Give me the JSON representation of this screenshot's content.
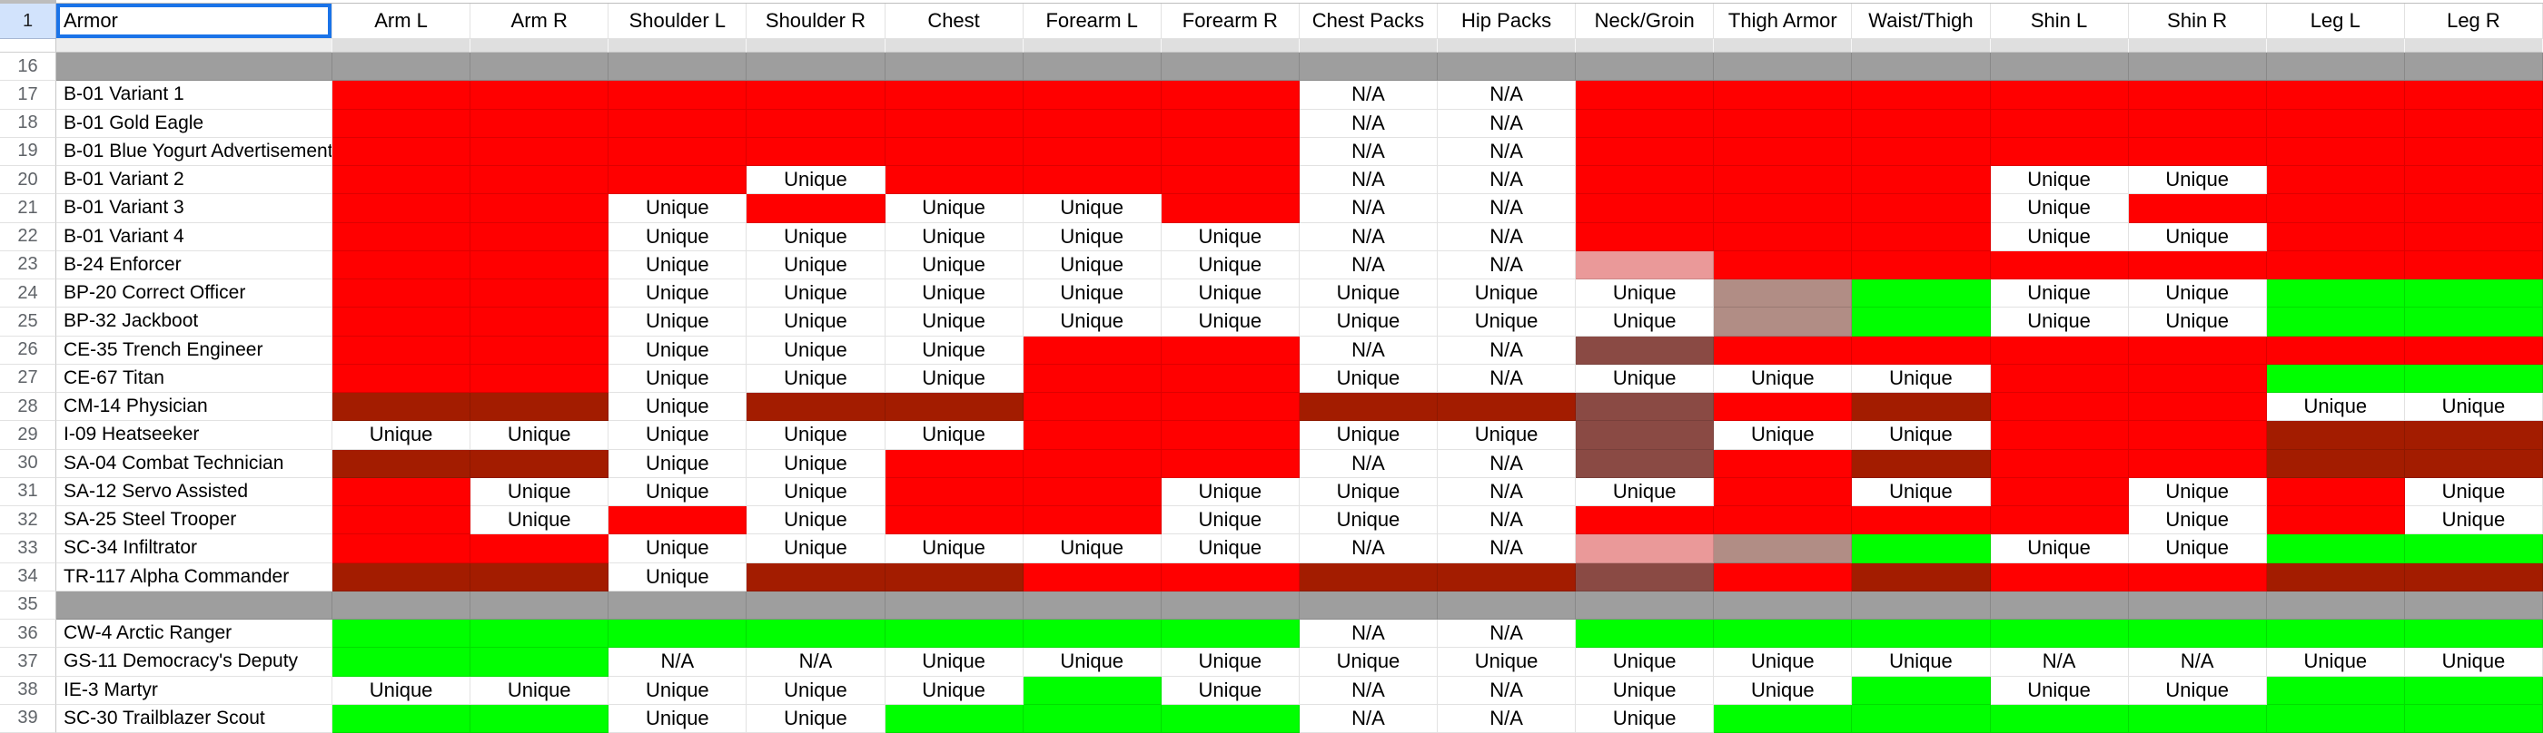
{
  "colors": {
    "red": "#ff0000",
    "green": "#00ff00",
    "dark_red": "#a31c00",
    "maroon": "#8a4a44",
    "pink": "#ea9999",
    "mauve": "#b18d85",
    "white": "#ffffff",
    "spacer_gray": "#9e9e9e",
    "selection_blue": "#1a73e8",
    "selected_row_header_bg": "#d2e3fc"
  },
  "cell_codes": {
    "R": {
      "label": "",
      "color_key": "red"
    },
    "G": {
      "label": "",
      "color_key": "green"
    },
    "D": {
      "label": "",
      "color_key": "dark_red"
    },
    "M": {
      "label": "",
      "color_key": "maroon"
    },
    "P": {
      "label": "",
      "color_key": "pink"
    },
    "V": {
      "label": "",
      "color_key": "mauve"
    },
    "U": {
      "label": "Unique",
      "color_key": "white"
    },
    "N": {
      "label": "N/A",
      "color_key": "white"
    }
  },
  "header": {
    "row_number": "1",
    "armor_label": "Armor",
    "columns": [
      "Arm L",
      "Arm R",
      "Shoulder L",
      "Shoulder R",
      "Chest",
      "Forearm L",
      "Forearm R",
      "Chest Packs",
      "Hip Packs",
      "Neck/Groin",
      "Thigh Armor",
      "Waist/Thigh",
      "Shin L",
      "Shin R",
      "Leg L",
      "Leg R"
    ]
  },
  "rows": [
    {
      "num": "16",
      "name": "",
      "type": "spacer",
      "cells": ""
    },
    {
      "num": "17",
      "name": "B-01 Variant 1",
      "type": "data",
      "cells": "RRRRRRRNNRRRRRRR"
    },
    {
      "num": "18",
      "name": "B-01 Gold Eagle",
      "type": "data",
      "cells": "RRRRRRRNNRRRRRRR"
    },
    {
      "num": "19",
      "name": "B-01 Blue Yogurt Advertisement",
      "type": "data",
      "cells": "RRRRRRRNNRRRRRRR"
    },
    {
      "num": "20",
      "name": "B-01 Variant 2",
      "type": "data",
      "cells": "RRRURRRNNRRRUURR"
    },
    {
      "num": "21",
      "name": "B-01 Variant 3",
      "type": "data",
      "cells": "RRURUURNNRRRURRR"
    },
    {
      "num": "22",
      "name": "B-01 Variant 4",
      "type": "data",
      "cells": "RRUUUUUNNRRRUURR"
    },
    {
      "num": "23",
      "name": "B-24 Enforcer",
      "type": "data",
      "cells": "RRUUUUUNNPRRRRRR"
    },
    {
      "num": "24",
      "name": "BP-20 Correct Officer",
      "type": "data",
      "cells": "RRUUUUUUUUVGUUGG"
    },
    {
      "num": "25",
      "name": "BP-32 Jackboot",
      "type": "data",
      "cells": "RRUUUUUUUUVGUUGG"
    },
    {
      "num": "26",
      "name": "CE-35 Trench Engineer",
      "type": "data",
      "cells": "RRUUURRNNMRRRRRR"
    },
    {
      "num": "27",
      "name": "CE-67 Titan",
      "type": "data",
      "cells": "RRUUURRUNUUURRGG"
    },
    {
      "num": "28",
      "name": "CM-14 Physician",
      "type": "data",
      "cells": "DDUDDRRDDMRDRRUU"
    },
    {
      "num": "29",
      "name": "I-09 Heatseeker",
      "type": "data",
      "cells": "UUUUURRUUMUURRDD"
    },
    {
      "num": "30",
      "name": "SA-04 Combat Technician",
      "type": "data",
      "cells": "DDUURRRNNMRDRRDD"
    },
    {
      "num": "31",
      "name": "SA-12 Servo Assisted",
      "type": "data",
      "cells": "RUUURRUUNURURURU"
    },
    {
      "num": "32",
      "name": "SA-25 Steel Trooper",
      "type": "data",
      "cells": "RURURRUUNRRRRURU"
    },
    {
      "num": "33",
      "name": "SC-34 Infiltrator",
      "type": "data",
      "cells": "RRUUUUUNNPVGUUGG"
    },
    {
      "num": "34",
      "name": "TR-117 Alpha Commander",
      "type": "data",
      "cells": "DDUDDRRDDMRDRRDD"
    },
    {
      "num": "35",
      "name": "",
      "type": "spacer",
      "cells": ""
    },
    {
      "num": "36",
      "name": "CW-4 Arctic Ranger",
      "type": "data",
      "cells": "GGGGGGGNNGGGGGGG"
    },
    {
      "num": "37",
      "name": "GS-11 Democracy's Deputy",
      "type": "data",
      "cells": "GGNNUUUUUUUUNNUU"
    },
    {
      "num": "38",
      "name": "IE-3 Martyr",
      "type": "data",
      "cells": "UUUUUGUNNUUGUUGG"
    },
    {
      "num": "39",
      "name": "SC-30 Trailblazer Scout",
      "type": "data",
      "cells": "GGUUGGGNNUGGGGGG"
    }
  ]
}
